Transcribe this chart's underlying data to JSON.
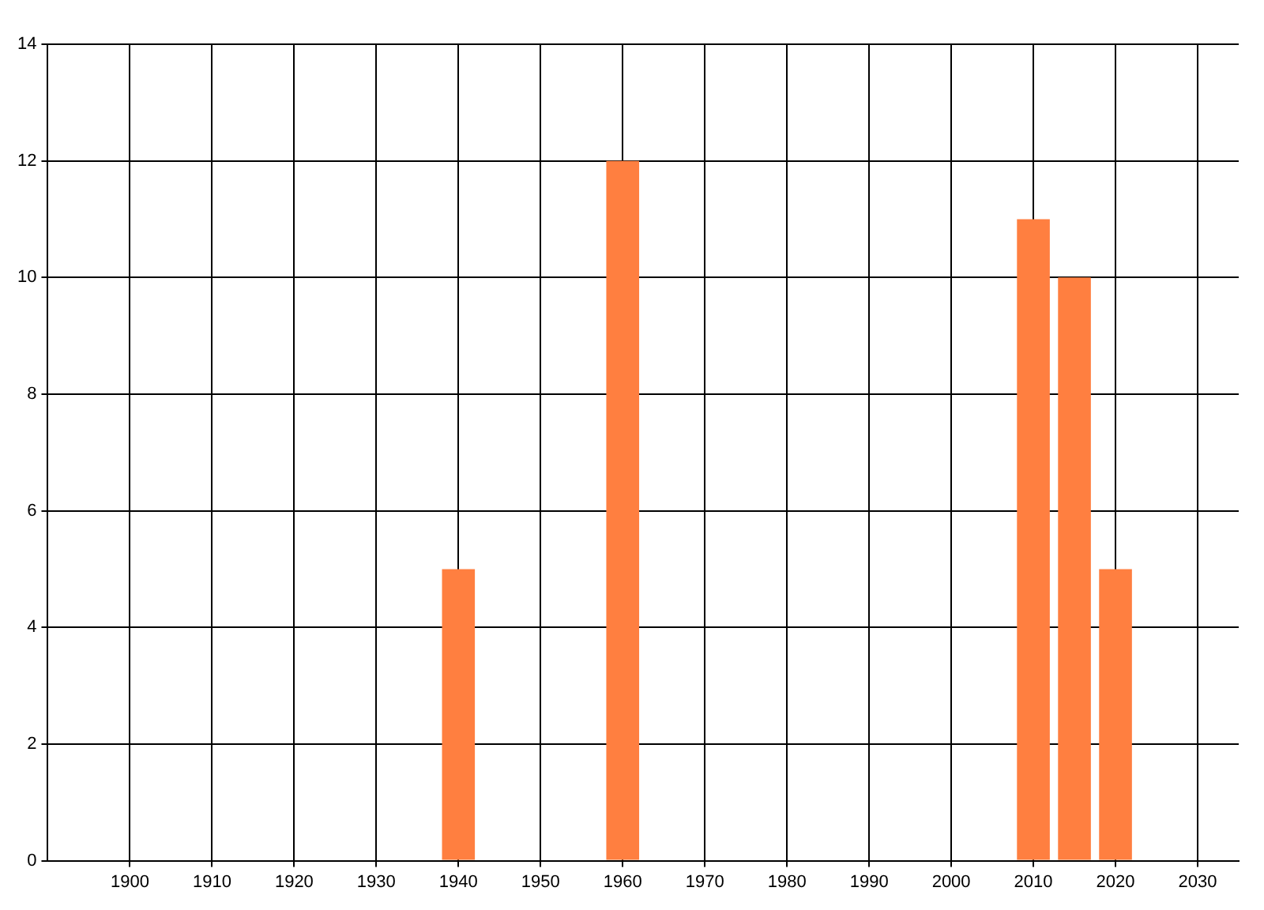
{
  "chart_data": {
    "type": "bar",
    "x": [
      1940,
      1960,
      2010,
      2015,
      2020
    ],
    "values": [
      5,
      12,
      11,
      10,
      5
    ],
    "color": "#ff7f40",
    "xlim": [
      1890,
      2035
    ],
    "xticks": [
      1900,
      1910,
      1920,
      1930,
      1940,
      1950,
      1960,
      1970,
      1980,
      1990,
      2000,
      2010,
      2020,
      2030
    ],
    "ylim": [
      0,
      14
    ],
    "yticks": [
      0,
      2,
      4,
      6,
      8,
      10,
      12,
      14
    ],
    "grid": true
  }
}
